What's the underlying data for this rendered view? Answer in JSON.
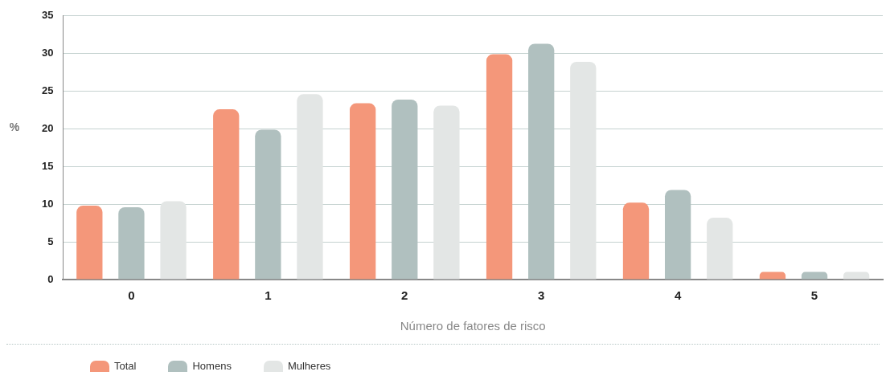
{
  "chart_data": {
    "type": "bar",
    "xlabel": "Número de fatores de risco",
    "ylabel": "%",
    "categories": [
      "0",
      "1",
      "2",
      "3",
      "4",
      "5"
    ],
    "series": [
      {
        "name": "Total",
        "color": "#f4977a",
        "values": [
          9.8,
          22.6,
          23.4,
          29.9,
          10.2,
          1.0
        ]
      },
      {
        "name": "Homens",
        "color": "#b0c0bf",
        "values": [
          9.6,
          19.9,
          23.9,
          31.3,
          11.9,
          1.0
        ]
      },
      {
        "name": "Mulheres",
        "color": "#e3e6e5",
        "values": [
          10.4,
          24.6,
          23.1,
          28.9,
          8.2,
          1.0
        ]
      }
    ],
    "ylim": [
      0,
      35
    ],
    "yticks": [
      0,
      5,
      10,
      15,
      20,
      25,
      30,
      35
    ],
    "grid": "y",
    "legend": "bottom left"
  }
}
